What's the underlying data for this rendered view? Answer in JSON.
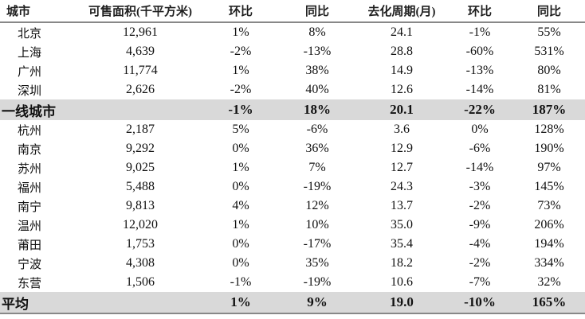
{
  "table": {
    "headers": [
      "城市",
      "可售面积(千平方米)",
      "环比",
      "同比",
      "去化周期(月)",
      "环比",
      "同比"
    ],
    "rows": [
      {
        "kind": "normal",
        "cells": [
          "北京",
          "12,961",
          "1%",
          "8%",
          "24.1",
          "-1%",
          "55%"
        ]
      },
      {
        "kind": "normal",
        "cells": [
          "上海",
          "4,639",
          "-2%",
          "-13%",
          "28.8",
          "-60%",
          "531%"
        ]
      },
      {
        "kind": "normal",
        "cells": [
          "广州",
          "11,774",
          "1%",
          "38%",
          "14.9",
          "-13%",
          "80%"
        ]
      },
      {
        "kind": "normal",
        "cells": [
          "深圳",
          "2,626",
          "-2%",
          "40%",
          "12.6",
          "-14%",
          "81%"
        ]
      },
      {
        "kind": "summary",
        "cells": [
          "一线城市",
          "",
          "-1%",
          "18%",
          "20.1",
          "-22%",
          "187%"
        ]
      },
      {
        "kind": "normal",
        "cells": [
          "杭州",
          "2,187",
          "5%",
          "-6%",
          "3.6",
          "0%",
          "128%"
        ]
      },
      {
        "kind": "normal",
        "cells": [
          "南京",
          "9,292",
          "0%",
          "36%",
          "12.9",
          "-6%",
          "190%"
        ]
      },
      {
        "kind": "normal",
        "cells": [
          "苏州",
          "9,025",
          "1%",
          "7%",
          "12.7",
          "-14%",
          "97%"
        ]
      },
      {
        "kind": "normal",
        "cells": [
          "福州",
          "5,488",
          "0%",
          "-19%",
          "24.3",
          "-3%",
          "145%"
        ]
      },
      {
        "kind": "normal",
        "cells": [
          "南宁",
          "9,813",
          "4%",
          "12%",
          "13.7",
          "-2%",
          "73%"
        ]
      },
      {
        "kind": "normal",
        "cells": [
          "温州",
          "12,020",
          "1%",
          "10%",
          "35.0",
          "-9%",
          "206%"
        ]
      },
      {
        "kind": "normal",
        "cells": [
          "莆田",
          "1,753",
          "0%",
          "-17%",
          "35.4",
          "-4%",
          "194%"
        ]
      },
      {
        "kind": "normal",
        "cells": [
          "宁波",
          "4,308",
          "0%",
          "35%",
          "18.2",
          "-2%",
          "334%"
        ]
      },
      {
        "kind": "normal",
        "cells": [
          "东营",
          "1,506",
          "-1%",
          "-19%",
          "10.6",
          "-7%",
          "32%"
        ]
      },
      {
        "kind": "summary",
        "cells": [
          "平均",
          "",
          "1%",
          "9%",
          "19.0",
          "-10%",
          "165%"
        ]
      }
    ]
  }
}
